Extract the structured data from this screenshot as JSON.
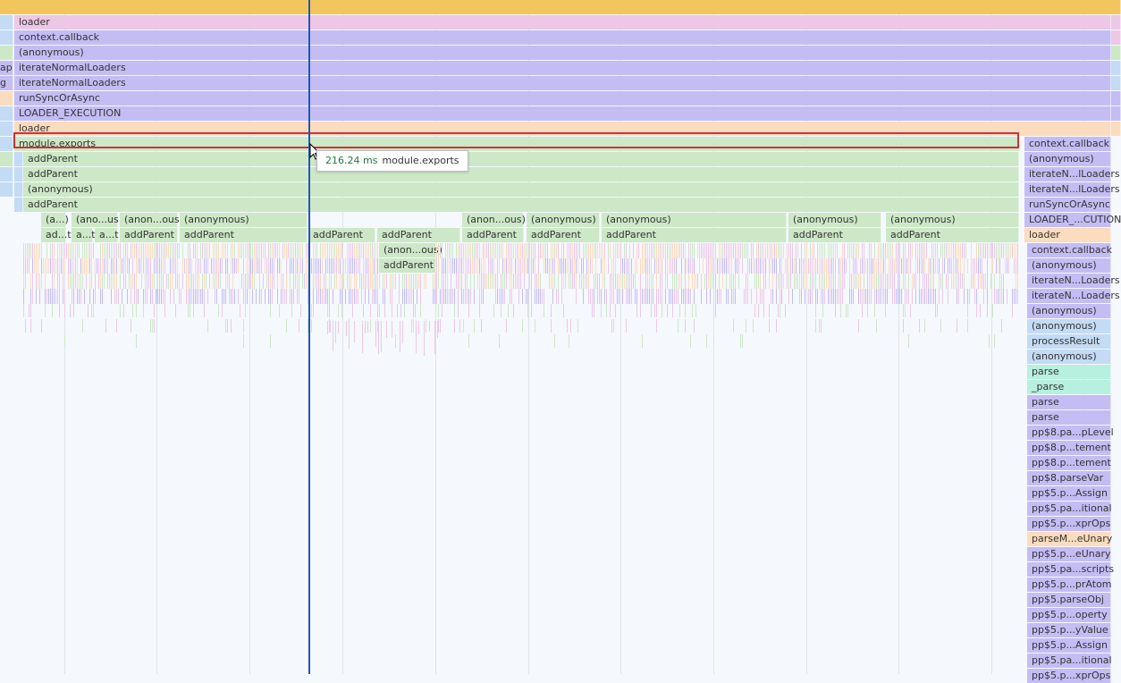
{
  "tooltip": {
    "duration": "216.24 ms",
    "name": "module.exports"
  },
  "colors": {
    "top": "#f2c65c",
    "pink": "#ecc8e6",
    "purple": "#c4bdf4",
    "peach": "#fbdcbe",
    "green": "#cde8c7",
    "blue": "#c3dbf4",
    "mint": "#b7f0de",
    "selection": "#d0303a",
    "cursor": "#1f57b8"
  },
  "main_stack": [
    {
      "label": "loader",
      "color": "pink"
    },
    {
      "label": "context.callback",
      "color": "purple"
    },
    {
      "label": "(anonymous)",
      "color": "purple"
    },
    {
      "label": "iterateNormalLoaders",
      "color": "purple"
    },
    {
      "label": "iterateNormalLoaders",
      "color": "purple"
    },
    {
      "label": "runSyncOrAsync",
      "color": "purple"
    },
    {
      "label": "LOADER_EXECUTION",
      "color": "purple"
    },
    {
      "label": "loader",
      "color": "peach"
    },
    {
      "label": "module.exports",
      "color": "green"
    }
  ],
  "left_edge_labels": [
    "ap",
    "g"
  ],
  "add_parent_stack": [
    {
      "label": "addParent",
      "indent": 1
    },
    {
      "label": "addParent",
      "indent": 1
    },
    {
      "label": "(anonymous)",
      "indent": 1
    },
    {
      "label": "addParent",
      "indent": 1
    }
  ],
  "row_anonymous": [
    {
      "label": "(a...)"
    },
    {
      "label": "(ano...us)"
    },
    {
      "label": "(anon...ous)"
    },
    {
      "label": "(anonymous)"
    },
    {
      "label": "(anon...ous)"
    },
    {
      "label": "(anonymous)"
    },
    {
      "label": "(anonymous)"
    },
    {
      "label": "(anonymous)"
    },
    {
      "label": "(anonymous)"
    }
  ],
  "row_add_parent": [
    {
      "label": "ad...t"
    },
    {
      "label": "a...t"
    },
    {
      "label": "a...t"
    },
    {
      "label": "addParent"
    },
    {
      "label": "addParent"
    },
    {
      "label": "addParent"
    },
    {
      "label": "addParent"
    },
    {
      "label": "addParent"
    },
    {
      "label": "addParent"
    },
    {
      "label": "addParent"
    },
    {
      "label": "addParent"
    },
    {
      "label": "addParent"
    }
  ],
  "nested": [
    {
      "label": "(anon...ous)"
    },
    {
      "label": "addParent"
    }
  ],
  "right_stack": [
    {
      "label": "context.callback",
      "color": "purple"
    },
    {
      "label": "(anonymous)",
      "color": "purple"
    },
    {
      "label": "iterateN...lLoaders",
      "color": "purple"
    },
    {
      "label": "iterateN...lLoaders",
      "color": "purple"
    },
    {
      "label": "runSyncOrAsync",
      "color": "purple"
    },
    {
      "label": "LOADER_...CUTION",
      "color": "purple"
    },
    {
      "label": "loader",
      "color": "peach"
    },
    {
      "label": "context.callback",
      "color": "purple"
    },
    {
      "label": "(anonymous)",
      "color": "purple"
    },
    {
      "label": "iterateN...Loaders",
      "color": "purple"
    },
    {
      "label": "iterateN...Loaders",
      "color": "purple"
    },
    {
      "label": "(anonymous)",
      "color": "purple"
    },
    {
      "label": "(anonymous)",
      "color": "blue"
    },
    {
      "label": "processResult",
      "color": "blue"
    },
    {
      "label": "(anonymous)",
      "color": "blue"
    },
    {
      "label": "parse",
      "color": "mint"
    },
    {
      "label": "_parse",
      "color": "mint"
    },
    {
      "label": "parse",
      "color": "purple"
    },
    {
      "label": "parse",
      "color": "purple"
    },
    {
      "label": "pp$8.pa...pLevel",
      "color": "purple"
    },
    {
      "label": "pp$8.p...tement",
      "color": "purple"
    },
    {
      "label": "pp$8.p...tement",
      "color": "purple"
    },
    {
      "label": "pp$8.parseVar",
      "color": "purple"
    },
    {
      "label": "pp$5.p...Assign",
      "color": "purple"
    },
    {
      "label": "pp$5.pa...itional",
      "color": "purple"
    },
    {
      "label": "pp$5.p...xprOps",
      "color": "purple"
    },
    {
      "label": "parseM...eUnary",
      "color": "peach"
    },
    {
      "label": "pp$5.p...eUnary",
      "color": "purple"
    },
    {
      "label": "pp$5.pa...scripts",
      "color": "purple"
    },
    {
      "label": "pp$5.p...prAtom",
      "color": "purple"
    },
    {
      "label": "pp$5.parseObj",
      "color": "purple"
    },
    {
      "label": "pp$5.p...operty",
      "color": "purple"
    },
    {
      "label": "pp$5.p...yValue",
      "color": "purple"
    },
    {
      "label": "pp$5.p...Assign",
      "color": "purple"
    },
    {
      "label": "pp$5.pa...itional",
      "color": "purple"
    },
    {
      "label": "pp$5.p...xprOps",
      "color": "purple"
    }
  ]
}
